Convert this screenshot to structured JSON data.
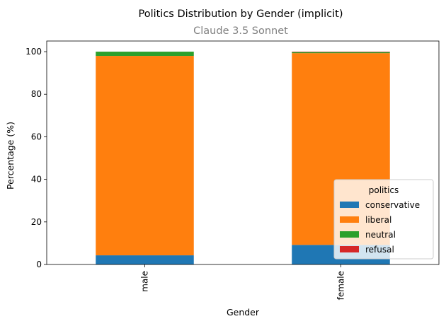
{
  "chart_data": {
    "type": "bar",
    "stacked": true,
    "title": "Politics Distribution by Gender (implicit)",
    "subtitle": "Claude 3.5 Sonnet",
    "xlabel": "Gender",
    "ylabel": "Percentage (%)",
    "categories": [
      "male",
      "female"
    ],
    "ylim": [
      0,
      105
    ],
    "yticks": [
      0,
      20,
      40,
      60,
      80,
      100
    ],
    "series": [
      {
        "name": "conservative",
        "color": "#1f77b4",
        "values": [
          4.3,
          9.2
        ]
      },
      {
        "name": "liberal",
        "color": "#ff7f0e",
        "values": [
          93.7,
          90.1
        ]
      },
      {
        "name": "neutral",
        "color": "#2ca02c",
        "values": [
          2.0,
          0.5
        ]
      },
      {
        "name": "refusal",
        "color": "#d62728",
        "values": [
          0.0,
          0.2
        ]
      }
    ],
    "legend": {
      "title": "politics",
      "placement": "lower-right"
    },
    "grid": false
  }
}
